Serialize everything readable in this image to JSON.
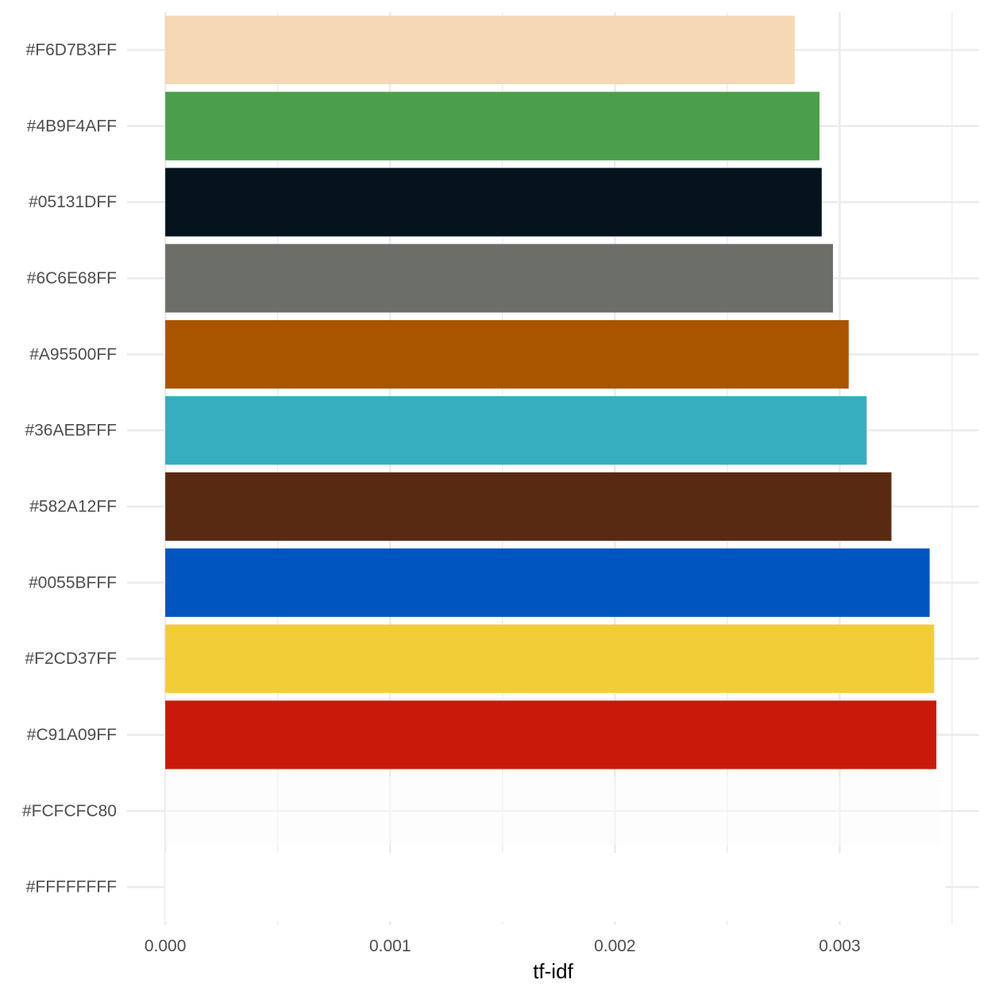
{
  "chart_data": {
    "type": "bar",
    "orientation": "horizontal",
    "xlabel": "tf-idf",
    "ylabel": "",
    "xlim": [
      -0.00017,
      0.00362
    ],
    "x_ticks": [
      0,
      0.001,
      0.002,
      0.003
    ],
    "x_tick_labels": [
      "0.000",
      "0.001",
      "0.002",
      "0.003"
    ],
    "x_minor_ticks": [
      0.0005,
      0.0015,
      0.0025,
      0.0035
    ],
    "grid": true,
    "legend": "none",
    "categories": [
      "#F6D7B3FF",
      "#4B9F4AFF",
      "#05131DFF",
      "#6C6E68FF",
      "#A95500FF",
      "#36AEBFFF",
      "#582A12FF",
      "#0055BFFF",
      "#F2CD37FF",
      "#C91A09FF",
      "#FCFCFC80",
      "#FFFFFFFF"
    ],
    "values": [
      0.0028,
      0.00291,
      0.00292,
      0.00297,
      0.00304,
      0.00312,
      0.00323,
      0.0034,
      0.00342,
      0.00343,
      0.00345,
      0.00347
    ],
    "bar_colors": [
      "#F6D7B3",
      "#4B9F4A",
      "#05131D",
      "#6C6E68",
      "#A95500",
      "#36AEBF",
      "#582A12",
      "#0055BF",
      "#F2CD37",
      "#C91A09",
      "#FCFCFC80",
      "#FFFFFF"
    ]
  }
}
